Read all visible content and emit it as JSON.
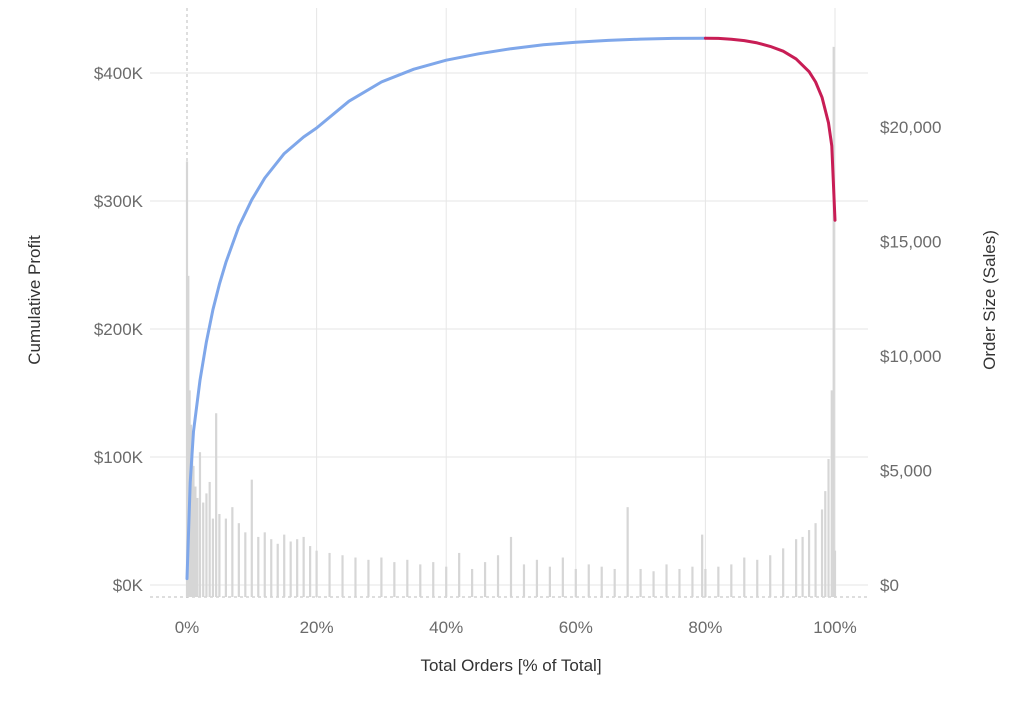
{
  "colors": {
    "top_segment": "#7fa7ea",
    "tail_segment": "#c81d55",
    "bars": "#d6d6d6",
    "grid": "#e6e6e6",
    "zero_line": "#bdbdbd"
  },
  "chart_data": {
    "type": "line",
    "grid": true,
    "x_axis": {
      "label": "Total Orders [% of Total]",
      "ticks": [
        "0%",
        "20%",
        "40%",
        "60%",
        "80%",
        "100%"
      ],
      "range": [
        0,
        100
      ]
    },
    "y_left": {
      "label": "Cumulative Profit",
      "ticks": [
        "$0K",
        "$100K",
        "$200K",
        "$300K",
        "$400K"
      ],
      "range": [
        0,
        430000
      ]
    },
    "y_right": {
      "label": "Order Size (Sales)",
      "ticks": [
        "$0",
        "$5,000",
        "$10,000",
        "$15,000",
        "$20,000"
      ],
      "range": [
        0,
        24000
      ]
    },
    "series": [
      {
        "axis": "left",
        "color": "#7fa7ea",
        "x": [
          0,
          0.5,
          1,
          2,
          3,
          4,
          5,
          6,
          8,
          10,
          12,
          15,
          18,
          20,
          25,
          30,
          35,
          40,
          45,
          50,
          55,
          60,
          65,
          70,
          75,
          80
        ],
        "y": [
          5000,
          80000,
          120000,
          160000,
          190000,
          215000,
          235000,
          252000,
          280000,
          301000,
          318000,
          337000,
          350000,
          357000,
          378000,
          393000,
          403000,
          410000,
          415000,
          419000,
          422000,
          424000,
          425500,
          426500,
          427000,
          427200
        ]
      },
      {
        "axis": "left",
        "color": "#c81d55",
        "x": [
          80,
          82,
          84,
          86,
          88,
          90,
          92,
          94,
          96,
          97,
          98,
          99,
          99.5,
          100
        ],
        "y": [
          427200,
          427000,
          426400,
          425300,
          423500,
          420800,
          417000,
          411000,
          401000,
          393000,
          381000,
          361000,
          343000,
          285000
        ]
      },
      {
        "type": "bar",
        "axis": "right",
        "color": "#d6d6d6",
        "x": [
          0,
          0.2,
          0.4,
          0.6,
          0.8,
          1,
          1.3,
          1.6,
          2,
          2.5,
          3,
          3.5,
          4,
          4.5,
          5,
          6,
          7,
          8,
          9,
          10,
          11,
          12,
          13,
          14,
          15,
          16,
          17,
          18,
          19,
          20,
          22,
          24,
          26,
          28,
          30,
          32,
          34,
          36,
          38,
          40,
          42,
          44,
          46,
          48,
          50,
          52,
          54,
          56,
          58,
          60,
          62,
          64,
          66,
          68,
          70,
          72,
          74,
          76,
          78,
          79.5,
          80,
          82,
          84,
          86,
          88,
          90,
          92,
          94,
          95,
          96,
          97,
          98,
          98.5,
          99,
          99.5,
          99.8,
          100
        ],
        "values": [
          18500,
          13500,
          8500,
          7000,
          6000,
          5200,
          4300,
          3800,
          5800,
          3600,
          4000,
          4500,
          2900,
          7500,
          3100,
          2900,
          3400,
          2700,
          2300,
          4600,
          2100,
          2300,
          2000,
          1800,
          2200,
          1900,
          2000,
          2100,
          1700,
          1500,
          1400,
          1300,
          1200,
          1100,
          1200,
          1000,
          1100,
          900,
          1000,
          800,
          1400,
          700,
          1000,
          1300,
          2100,
          900,
          1100,
          800,
          1200,
          700,
          900,
          800,
          700,
          3400,
          700,
          600,
          900,
          700,
          800,
          2200,
          700,
          800,
          900,
          1200,
          1100,
          1300,
          1600,
          2000,
          2100,
          2400,
          2700,
          3300,
          4100,
          5500,
          8500,
          23500,
          1500
        ]
      }
    ]
  }
}
